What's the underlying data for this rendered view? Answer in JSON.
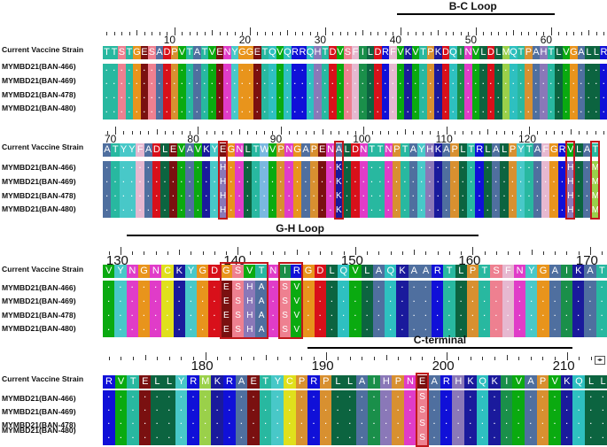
{
  "labels": [
    "Current Vaccine Strain",
    "MYMBD21(BAN-466)",
    "MYMBD21(BAN-469)",
    "MYMBD21(BAN-478)",
    "MYMBD21(BAN-480)"
  ],
  "aa_colors": {
    "A": "#4f6f9f",
    "R": "#1010d8",
    "N": "#e03cc8",
    "D": "#d8101a",
    "C": "#e0e01c",
    "Q": "#2ec0c0",
    "E": "#7a1010",
    "G": "#e8941c",
    "H": "#8a78b8",
    "I": "#1a8f4a",
    "L": "#0c6440",
    "K": "#1a1a9c",
    "M": "#9ad04a",
    "F": "#e6b8d0",
    "P": "#d89030",
    "S": "#ee8090",
    "T": "#28b8a0",
    "W": "#7ab8e0",
    "Y": "#48c8c8",
    "V": "#0aaa10"
  },
  "rows": [
    {
      "start": 1,
      "seq": "TTSTGESADPVTATVENYGGETQVQRRQHTDVSFILDRFVKVTPKDQINVLDLMQTPAHTLVGALLRT",
      "variants": [
        {},
        {},
        {},
        {}
      ],
      "ticks": [
        10,
        20,
        30,
        40,
        50,
        60
      ],
      "regions": [
        {
          "name": "B-C Loop",
          "start": 40,
          "end": 60
        }
      ],
      "highlight_boxes": []
    },
    {
      "start": 69,
      "seq": "ATYYFADLEVAVKYEGNLTWVPNGAPENALDNTTNPTAYHKAPLTRLALPYTAFGRVLAT",
      "variants": [
        {
          "14": "H",
          "28": "K",
          "56": "H",
          "59": "M"
        },
        {
          "14": "H",
          "28": "K",
          "56": "H",
          "59": "M"
        },
        {
          "14": "H",
          "28": "K",
          "56": "H",
          "59": "M"
        },
        {
          "14": "H",
          "28": "K",
          "56": "H",
          "59": "M"
        }
      ],
      "ticks": [
        70,
        80,
        90,
        100,
        110,
        120
      ],
      "regions": [],
      "highlight_boxes": [
        14,
        28,
        56,
        59
      ]
    },
    {
      "start": 129,
      "seq": "VYNGNCKYGDGSVTNIRGDLQVLAQKAARTLPTSFNYGAIKAT",
      "variants": [
        {
          "10": "E",
          "11": "S",
          "12": "H",
          "13": "A",
          "15": "S",
          "16": "V"
        },
        {
          "10": "E",
          "11": "S",
          "12": "H",
          "13": "A",
          "15": "S",
          "16": "V"
        },
        {
          "10": "E",
          "11": "S",
          "12": "H",
          "13": "A",
          "15": "S",
          "16": "V"
        },
        {
          "10": "E",
          "11": "S",
          "12": "H",
          "13": "A",
          "15": "S",
          "16": "V"
        }
      ],
      "ticks": [
        130,
        140,
        150,
        160,
        170
      ],
      "regions": [
        {
          "name": "G-H Loop",
          "start": 131,
          "end": 160
        }
      ],
      "highlight_boxes": [
        [
          10,
          13
        ],
        [
          15,
          16
        ]
      ]
    },
    {
      "start": 172,
      "seq": "RVTELLYRMKRAETYCPRPLLAIHPNEARHKQKIVAPVKQLL",
      "variants": [
        {
          "26": "S"
        },
        {
          "26": "S"
        },
        {
          "26": "S"
        },
        {
          "26": "S"
        }
      ],
      "ticks": [
        180,
        190,
        200,
        210
      ],
      "regions": [
        {
          "name": "C-terminal",
          "start": 189,
          "end": 210
        }
      ],
      "highlight_boxes": [
        26
      ]
    }
  ]
}
